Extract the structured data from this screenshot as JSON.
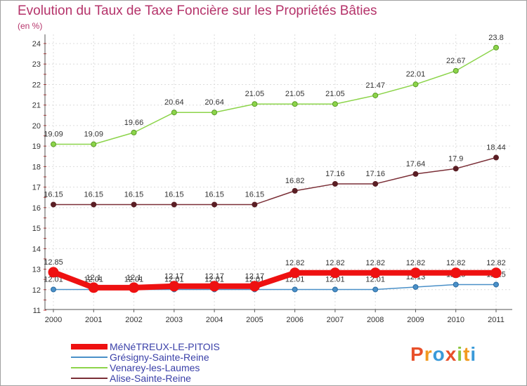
{
  "title": "Evolution du Taux de Taxe Foncière sur les Propriétés Bâties",
  "subtitle": "(en %)",
  "logo": {
    "text": "Proxiti",
    "colors": [
      "#e8502a",
      "#f29a1f",
      "#3a9ad9",
      "#e8502a",
      "#8cc63f",
      "#f29a1f",
      "#3a9ad9"
    ]
  },
  "chart_data": {
    "type": "line",
    "x": [
      "2000",
      "2001",
      "2002",
      "2003",
      "2004",
      "2005",
      "2006",
      "2007",
      "2008",
      "2009",
      "2010",
      "2011"
    ],
    "ylim": [
      11,
      24
    ],
    "yticks": [
      "11",
      "12",
      "13",
      "14",
      "15",
      "16",
      "17",
      "18",
      "19",
      "20",
      "21",
      "22",
      "23",
      "24"
    ],
    "grid": true,
    "legend_position": "bottom-left",
    "series": [
      {
        "name": "Venarey-les-Laumes",
        "color": "#8cd44a",
        "values": [
          19.09,
          19.09,
          19.66,
          20.64,
          20.64,
          21.05,
          21.05,
          21.05,
          21.47,
          22.01,
          22.67,
          23.8
        ],
        "labels": [
          "19.09",
          "19.09",
          "19.66",
          "20.64",
          "20.64",
          "21.05",
          "21.05",
          "21.05",
          "21.47",
          "22.01",
          "22.67",
          "23.8"
        ]
      },
      {
        "name": "Alise-Sainte-Reine",
        "color": "#7a2e36",
        "values": [
          16.15,
          16.15,
          16.15,
          16.15,
          16.15,
          16.15,
          16.82,
          17.16,
          17.16,
          17.64,
          17.9,
          18.44
        ],
        "labels": [
          "16.15",
          "16.15",
          "16.15",
          "16.15",
          "16.15",
          "16.15",
          "16.82",
          "17.16",
          "17.16",
          "17.64",
          "17.9",
          "18.44"
        ]
      },
      {
        "name": "Grésigny-Sainte-Reine",
        "color": "#4a90c8",
        "values": [
          12.01,
          12.01,
          12.01,
          12.01,
          12.01,
          12.01,
          12.01,
          12.01,
          12.01,
          12.13,
          12.25,
          12.25
        ],
        "labels": [
          "12.01",
          "12.01",
          "12.01",
          "12.01",
          "12.01",
          "12.01",
          "12.01",
          "12.01",
          "12.01",
          "12.13",
          "12.25",
          "12.25"
        ]
      },
      {
        "name": "MéNéTREUX-LE-PITOIS",
        "color": "#ee1111",
        "values": [
          12.85,
          12.1,
          12.1,
          12.17,
          12.17,
          12.17,
          12.82,
          12.82,
          12.82,
          12.82,
          12.82,
          12.82
        ],
        "labels": [
          "12.85",
          "12.1",
          "12.1",
          "12.17",
          "12.17",
          "12.17",
          "12.82",
          "12.82",
          "12.82",
          "12.82",
          "12.82",
          "12.82"
        ]
      }
    ],
    "legend": [
      "MéNéTREUX-LE-PITOIS",
      "Grésigny-Sainte-Reine",
      "Venarey-les-Laumes",
      "Alise-Sainte-Reine"
    ]
  }
}
